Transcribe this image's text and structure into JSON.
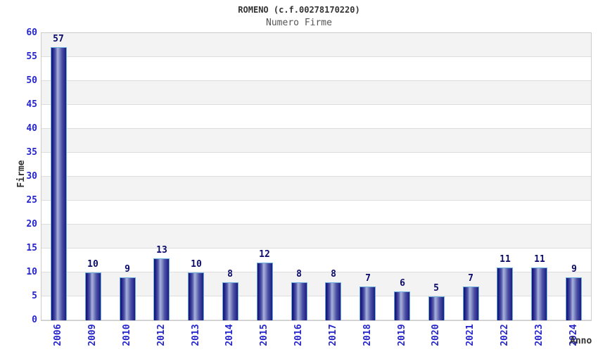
{
  "header": {
    "title": "ROMENO (c.f.00278170220)",
    "subtitle": "Numero Firme"
  },
  "axes": {
    "y_title": "Firme",
    "x_title": "Anno"
  },
  "chart_data": {
    "type": "bar",
    "title": "ROMENO (c.f.00278170220)",
    "subtitle": "Numero Firme",
    "xlabel": "Anno",
    "ylabel": "Firme",
    "categories": [
      "2006",
      "2009",
      "2010",
      "2012",
      "2013",
      "2014",
      "2015",
      "2016",
      "2017",
      "2018",
      "2019",
      "2020",
      "2021",
      "2022",
      "2023",
      "2024"
    ],
    "values": [
      57,
      10,
      9,
      13,
      10,
      8,
      12,
      8,
      8,
      7,
      6,
      5,
      7,
      11,
      11,
      9
    ],
    "ylim": [
      0,
      60
    ],
    "ytick_step": 5,
    "grid": "horizontal-bands-alternating",
    "legend": "none",
    "bar_value_labels": true,
    "x_tick_rotation": -90
  },
  "colors": {
    "background": "#ffffff",
    "band_gray": "#f3f3f3",
    "band_white": "#ffffff",
    "gridline": "#dddddd",
    "plot_border": "#cccccc",
    "tick_label": "#2626cc",
    "value_label": "#0a0a6a",
    "axis_title": "#333333",
    "title_color": "#333333",
    "subtitle_color": "#555555",
    "bar_border": "#6aaede",
    "bar_gradient": [
      "#12126a",
      "#23238c",
      "#555cab",
      "#aab2dc",
      "#8d94c9",
      "#4a50a4",
      "#1c1c80"
    ],
    "bar_gradient_stops": [
      0,
      10,
      28,
      42,
      52,
      72,
      100
    ]
  }
}
